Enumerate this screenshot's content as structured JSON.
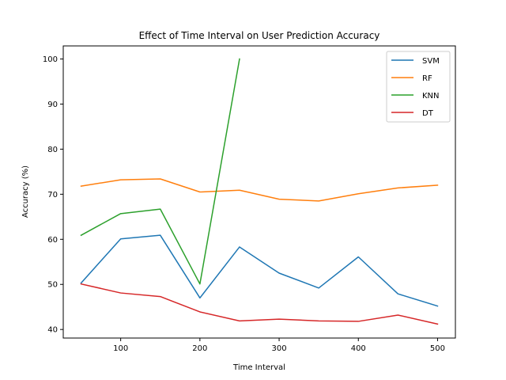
{
  "chart_data": {
    "type": "line",
    "title": "Effect of Time Interval on User Prediction Accuracy",
    "xlabel": "Time Interval",
    "ylabel": "Accuracy (%)",
    "xlim": [
      27.5,
      522.5
    ],
    "ylim": [
      38.1,
      102.9
    ],
    "xticks": [
      100,
      200,
      300,
      400,
      500
    ],
    "yticks": [
      40,
      50,
      60,
      70,
      80,
      90,
      100
    ],
    "grid": false,
    "legend_position": "top-right",
    "series": [
      {
        "name": "SVM",
        "color": "#1f77b4",
        "x": [
          50,
          100,
          150,
          200,
          250,
          300,
          350,
          400,
          450,
          500
        ],
        "y": [
          50.3,
          60.1,
          60.9,
          47.0,
          58.3,
          52.5,
          49.2,
          56.1,
          47.9,
          45.2
        ]
      },
      {
        "name": "RF",
        "color": "#ff7f0e",
        "x": [
          50,
          100,
          150,
          200,
          250,
          300,
          350,
          400,
          450,
          500
        ],
        "y": [
          71.8,
          73.2,
          73.4,
          70.5,
          70.9,
          68.9,
          68.5,
          70.1,
          71.4,
          72.0
        ]
      },
      {
        "name": "KNN",
        "color": "#2ca02c",
        "x": [
          50,
          100,
          150,
          200,
          250
        ],
        "y": [
          60.9,
          65.7,
          66.7,
          50.1,
          100.0
        ]
      },
      {
        "name": "DT",
        "color": "#d62728",
        "x": [
          50,
          100,
          150,
          200,
          250,
          300,
          350,
          400,
          450,
          500
        ],
        "y": [
          50.1,
          48.1,
          47.3,
          43.9,
          41.9,
          42.3,
          41.9,
          41.8,
          43.2,
          41.2
        ]
      }
    ]
  }
}
